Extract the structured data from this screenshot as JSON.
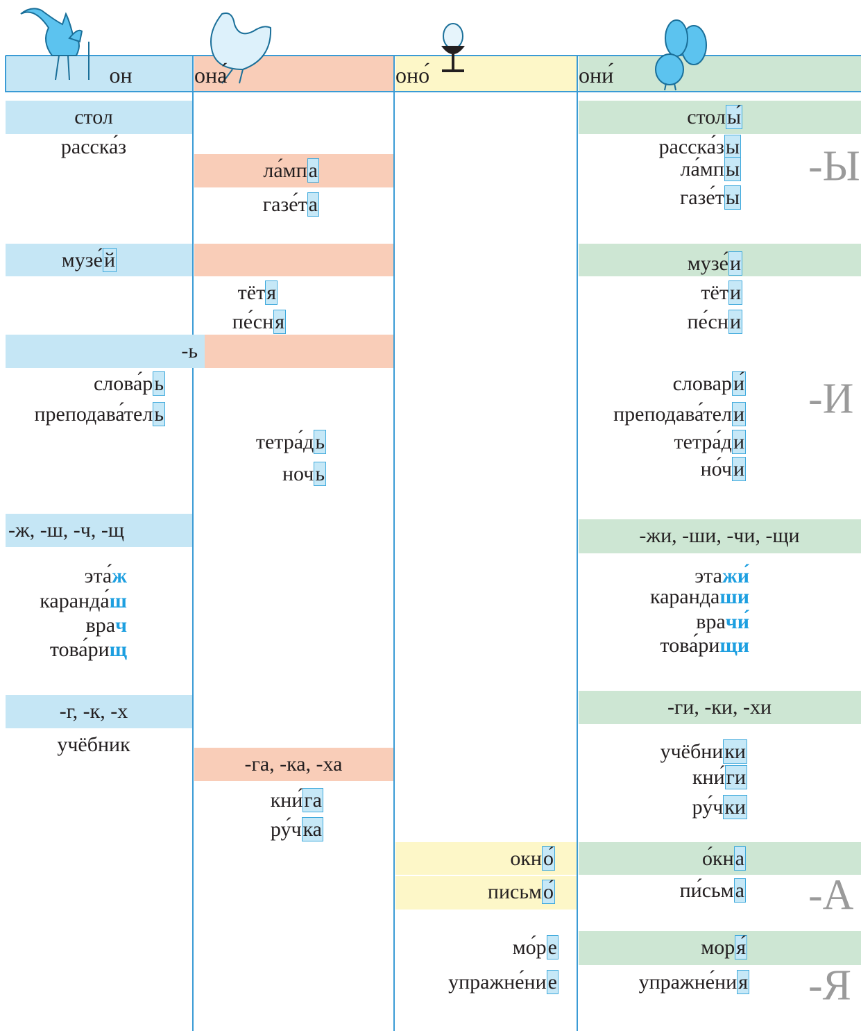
{
  "headers": [
    "он",
    "она́",
    "оно́",
    "они́"
  ],
  "columns": [
    [
      {
        "text": "стол"
      },
      {
        "text": "расска́з"
      },
      {
        "stem": "музе́",
        "ending": "й"
      },
      {
        "text": "-ь"
      },
      {
        "stem": "слова́р",
        "ending": "ь"
      },
      {
        "stem": "преподава́тел",
        "ending": "ь"
      },
      {
        "text": "-ж, -ш, -ч, -щ"
      },
      {
        "stem": "эта́",
        "ending": "ж"
      },
      {
        "stem": "каранда́",
        "ending": "ш"
      },
      {
        "stem": "вра",
        "ending": "ч"
      },
      {
        "stem": "това́ри",
        "ending": "щ"
      },
      {
        "text": "-г, -к, -х"
      },
      {
        "text": "учёбник"
      }
    ],
    [
      {
        "stem": "ла́мп",
        "ending": "а"
      },
      {
        "stem": "газе́т",
        "ending": "а"
      },
      {
        "stem": "тёт",
        "ending": "я"
      },
      {
        "stem": "пе́сн",
        "ending": "я"
      },
      {
        "stem": "тетра́д",
        "ending": "ь"
      },
      {
        "stem": "ноч",
        "ending": "ь"
      },
      {
        "text": "-га, -ка, -ха"
      },
      {
        "stem": "кни́",
        "ending": "га"
      },
      {
        "stem": "ру́ч",
        "ending": "ка"
      }
    ],
    [
      {
        "stem": "окн",
        "ending": "о́"
      },
      {
        "stem": "письм",
        "ending": "о́"
      },
      {
        "stem": "мо́р",
        "ending": "е"
      },
      {
        "stem": "упражне́ни",
        "ending": "е"
      }
    ],
    [
      {
        "stem": "стол",
        "ending": "ы́"
      },
      {
        "stem": "расска́з",
        "ending": "ы"
      },
      {
        "stem": "ла́мп",
        "ending": "ы"
      },
      {
        "stem": "газе́т",
        "ending": "ы"
      },
      {
        "stem": "музе́",
        "ending": "и"
      },
      {
        "stem": "тёт",
        "ending": "и"
      },
      {
        "stem": "пе́сн",
        "ending": "и"
      },
      {
        "stem": "словар",
        "ending": "и́"
      },
      {
        "stem": "преподава́тел",
        "ending": "и"
      },
      {
        "stem": "тетра́д",
        "ending": "и"
      },
      {
        "stem": "но́ч",
        "ending": "и"
      },
      {
        "text": "-жи, -ши, -чи, -щи"
      },
      {
        "stem": "эта",
        "ending": "жи́"
      },
      {
        "stem": "каранда",
        "ending": "ши"
      },
      {
        "stem": "вра",
        "ending": "чи́"
      },
      {
        "stem": "това́ри",
        "ending": "щи"
      },
      {
        "text": "-ги, -ки, -хи"
      },
      {
        "stem": "учёбни",
        "ending": "ки"
      },
      {
        "stem": "кни́",
        "ending": "ги"
      },
      {
        "stem": "ру́ч",
        "ending": "ки"
      },
      {
        "stem": "о́кн",
        "ending": "а"
      },
      {
        "stem": "пи́сьм",
        "ending": "а"
      },
      {
        "stem": "мор",
        "ending": "я́"
      },
      {
        "stem": "упражне́ни",
        "ending": "я"
      }
    ]
  ],
  "side_labels": [
    "-Ы",
    "-И",
    "-А",
    "-Я"
  ]
}
